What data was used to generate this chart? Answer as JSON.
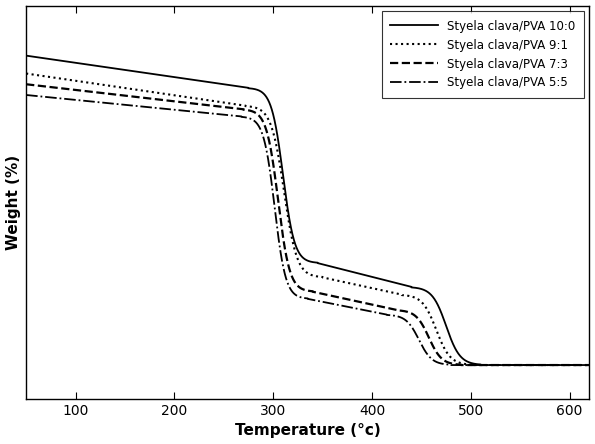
{
  "title": "",
  "xlabel": "Temperature (°c)",
  "ylabel": "Weight (%)",
  "xlim": [
    50,
    620
  ],
  "ylim": [
    0,
    110
  ],
  "xticks": [
    100,
    200,
    300,
    400,
    500,
    600
  ],
  "series": [
    {
      "label": "Styela clava/PVA 10:0",
      "linestyle": "solid",
      "linewidth": 1.3,
      "color": "#000000",
      "start_weight": 96,
      "weight_at_270": 87,
      "drop1_start": 275,
      "drop1_end": 345,
      "weight_after_drop1": 38,
      "slope_mid": -0.07,
      "drop2_start": 440,
      "drop2_end": 510,
      "final_weight": 9.5
    },
    {
      "label": "Styela clava/PVA 9:1",
      "linestyle": "dotted",
      "linewidth": 1.5,
      "color": "#000000",
      "start_weight": 91,
      "weight_at_270": 82,
      "drop1_start": 272,
      "drop1_end": 350,
      "weight_after_drop1": 34,
      "slope_mid": -0.06,
      "drop2_start": 430,
      "drop2_end": 500,
      "final_weight": 9.5
    },
    {
      "label": "Styela clava/PVA 7:3",
      "linestyle": "dashed",
      "linewidth": 1.6,
      "color": "#000000",
      "start_weight": 88,
      "weight_at_270": 81,
      "drop1_start": 270,
      "drop1_end": 340,
      "weight_after_drop1": 30,
      "slope_mid": -0.06,
      "drop2_start": 425,
      "drop2_end": 490,
      "final_weight": 9.5
    },
    {
      "label": "Styela clava/PVA 5:5",
      "linestyle": "dashdot",
      "linewidth": 1.3,
      "color": "#000000",
      "start_weight": 85,
      "weight_at_270": 79,
      "drop1_start": 268,
      "drop1_end": 335,
      "weight_after_drop1": 28,
      "slope_mid": -0.055,
      "drop2_start": 415,
      "drop2_end": 480,
      "final_weight": 9.5
    }
  ]
}
